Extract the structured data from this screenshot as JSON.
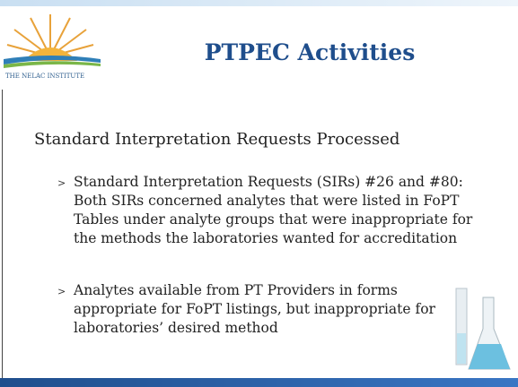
{
  "header": {
    "title": "PTPEC Activities",
    "logo_text": "THE NELAC INSTITUTE"
  },
  "subtitle": "Standard Interpretation Requests Processed",
  "bullets": [
    {
      "lines": [
        "Standard Interpretation Requests (SIRs) #26 and #80:",
        "Both SIRs concerned analytes that were listed in FoPT",
        "Tables under analyte groups that were inappropriate for",
        "the methods the laboratories wanted for accreditation"
      ]
    },
    {
      "lines": [
        "Analytes available from PT Providers in forms",
        "appropriate for FoPT listings, but inappropriate for",
        "laboratories’ desired method"
      ]
    }
  ]
}
